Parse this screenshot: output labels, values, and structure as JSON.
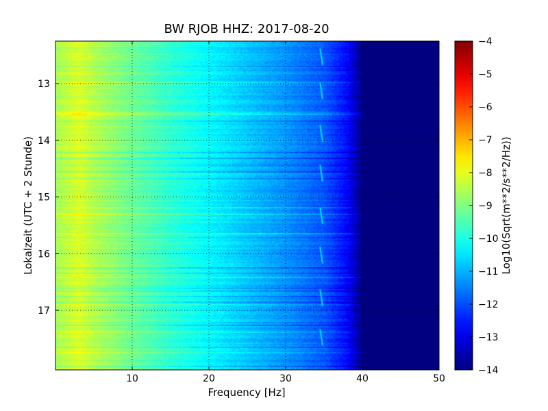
{
  "chart_data": {
    "type": "heatmap",
    "title": "BW RJOB HHZ: 2017-08-20",
    "xlabel": "Frequency [Hz]",
    "ylabel": "Lokalzeit (UTC + 2 Stunde)",
    "xlim": [
      0,
      50
    ],
    "ylim": [
      12.25,
      18.05
    ],
    "y_inverted": true,
    "x_ticks": [
      10,
      20,
      30,
      40,
      50
    ],
    "x_tick_labels": [
      "10",
      "20",
      "30",
      "40",
      "50"
    ],
    "y_ticks": [
      13,
      14,
      15,
      16,
      17
    ],
    "y_tick_labels": [
      "13",
      "14",
      "15",
      "16",
      "17"
    ],
    "grid": true,
    "colormap": "jet",
    "colorbar": {
      "label": "Log10(Sqrt(m**2/s**2/Hz))",
      "range": [
        -14,
        -4
      ],
      "ticks": [
        -4,
        -5,
        -6,
        -7,
        -8,
        -9,
        -10,
        -11,
        -12,
        -13,
        -14
      ],
      "tick_labels": [
        "−4",
        "−5",
        "−6",
        "−7",
        "−8",
        "−9",
        "−10",
        "−11",
        "−12",
        "−13",
        "−14"
      ]
    },
    "spectral_profile": {
      "frequency_hz": [
        0,
        3,
        5,
        10,
        15,
        20,
        25,
        30,
        35,
        38,
        40,
        42,
        50
      ],
      "log10_psd": [
        -8.6,
        -8.1,
        -8.5,
        -9.2,
        -9.8,
        -10.3,
        -10.8,
        -11.3,
        -11.9,
        -12.7,
        -14.0,
        -14.0,
        -14.0
      ]
    },
    "annotations": {
      "periodic_feature_frequency_hz": 34.5,
      "periodic_feature_times": [
        12.5,
        13.1,
        13.85,
        14.55,
        15.3,
        16.0,
        16.75,
        17.45
      ]
    }
  }
}
